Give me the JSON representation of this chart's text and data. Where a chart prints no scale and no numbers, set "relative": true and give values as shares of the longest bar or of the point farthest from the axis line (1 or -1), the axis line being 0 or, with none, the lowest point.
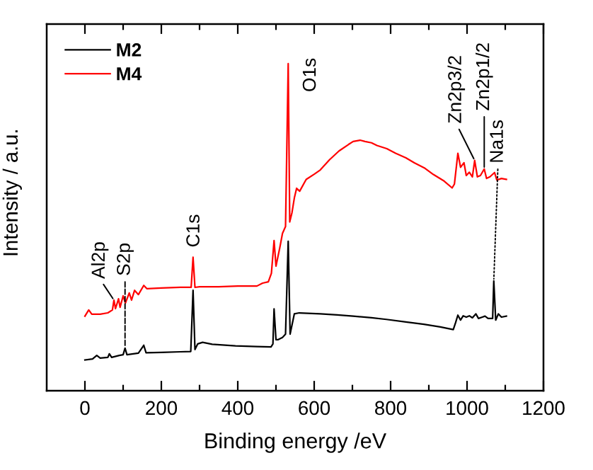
{
  "chart_data": {
    "type": "line",
    "relative": true,
    "xlabel": "Binding energy /eV",
    "ylabel": "Intensity / a.u.",
    "xlim": [
      -100,
      1200
    ],
    "xticks": [
      0,
      {
        "value": 100,
        "label": null
      },
      200,
      {
        "value": 300,
        "label": null
      },
      400,
      {
        "value": 500,
        "label": null
      },
      600,
      {
        "value": 700,
        "label": null
      },
      800,
      {
        "value": 900,
        "label": null
      },
      1000,
      {
        "value": 1100,
        "label": null
      },
      1200
    ],
    "legend": "top left",
    "series": [
      {
        "name": "M2",
        "color": "#000000",
        "x": [
          0,
          20,
          31,
          40,
          60,
          64,
          70,
          90,
          100,
          105,
          110,
          140,
          154,
          160,
          200,
          250,
          277,
          283,
          288,
          295,
          308,
          333,
          394,
          450,
          487,
          492,
          495,
          500,
          505,
          517,
          525,
          532,
          537,
          548,
          561,
          616,
          660,
          702,
          750,
          789,
          840,
          887,
          930,
          964,
          970,
          976,
          983,
          990,
          998,
          1006,
          1014,
          1023,
          1030,
          1040,
          1047,
          1055,
          1062,
          1067,
          1070,
          1075,
          1082,
          1090,
          1103
        ],
        "values": [
          0.094,
          0.097,
          0.108,
          0.1,
          0.102,
          0.113,
          0.102,
          0.108,
          0.11,
          0.13,
          0.11,
          0.115,
          0.139,
          0.116,
          0.117,
          0.119,
          0.12,
          0.307,
          0.126,
          0.143,
          0.148,
          0.142,
          0.137,
          0.135,
          0.134,
          0.143,
          0.25,
          0.156,
          0.156,
          0.163,
          0.173,
          0.457,
          0.173,
          0.235,
          0.238,
          0.235,
          0.232,
          0.228,
          0.223,
          0.218,
          0.21,
          0.203,
          0.195,
          0.187,
          0.208,
          0.231,
          0.216,
          0.229,
          0.225,
          0.229,
          0.223,
          0.235,
          0.221,
          0.225,
          0.228,
          0.221,
          0.221,
          0.221,
          0.336,
          0.216,
          0.235,
          0.225,
          0.228
        ]
      },
      {
        "name": "M4",
        "color": "#ff0000",
        "x": [
          0,
          10,
          18,
          40,
          60,
          72,
          76,
          80,
          88,
          92,
          100,
          106,
          116,
          122,
          130,
          140,
          154,
          162,
          200,
          250,
          278,
          283,
          288,
          300,
          350,
          400,
          450,
          465,
          480,
          488,
          495,
          500,
          510,
          517,
          525,
          532,
          536,
          542,
          548,
          554,
          562,
          579,
          600,
          616,
          640,
          665,
          690,
          702,
          720,
          733,
          750,
          764,
          790,
          813,
          840,
          862,
          890,
          912,
          940,
          961,
          967,
          976,
          983,
          992,
          998,
          1006,
          1014,
          1020,
          1027,
          1035,
          1045,
          1051,
          1060,
          1072,
          1078,
          1090,
          1103
        ],
        "values": [
          0.228,
          0.247,
          0.234,
          0.234,
          0.238,
          0.247,
          0.277,
          0.251,
          0.281,
          0.255,
          0.29,
          0.268,
          0.299,
          0.277,
          0.307,
          0.294,
          0.322,
          0.312,
          0.314,
          0.316,
          0.316,
          0.408,
          0.316,
          0.318,
          0.318,
          0.32,
          0.32,
          0.329,
          0.333,
          0.359,
          0.459,
          0.381,
          0.437,
          0.481,
          0.502,
          1.0,
          0.516,
          0.545,
          0.589,
          0.619,
          0.61,
          0.646,
          0.662,
          0.675,
          0.706,
          0.733,
          0.753,
          0.762,
          0.766,
          0.762,
          0.758,
          0.75,
          0.74,
          0.726,
          0.712,
          0.697,
          0.68,
          0.661,
          0.641,
          0.62,
          0.632,
          0.726,
          0.683,
          0.697,
          0.658,
          0.668,
          0.654,
          0.704,
          0.654,
          0.658,
          0.678,
          0.649,
          0.654,
          0.667,
          0.644,
          0.649,
          0.646
        ]
      }
    ],
    "annotations": [
      {
        "text": "Al2p",
        "x": 76,
        "y": 0.277
      },
      {
        "text": "S2p",
        "x": 105,
        "y": 0.13
      },
      {
        "text": "C1s",
        "x": 283,
        "y": 0.408
      },
      {
        "text": "O1s",
        "x": 532,
        "y": 1.0
      },
      {
        "text": "Zn2p3/2",
        "x": 1020,
        "y": 0.704
      },
      {
        "text": "Zn2p1/2",
        "x": 1045,
        "y": 0.678
      },
      {
        "text": "Na1s",
        "x": 1070,
        "y": 0.336
      }
    ]
  }
}
